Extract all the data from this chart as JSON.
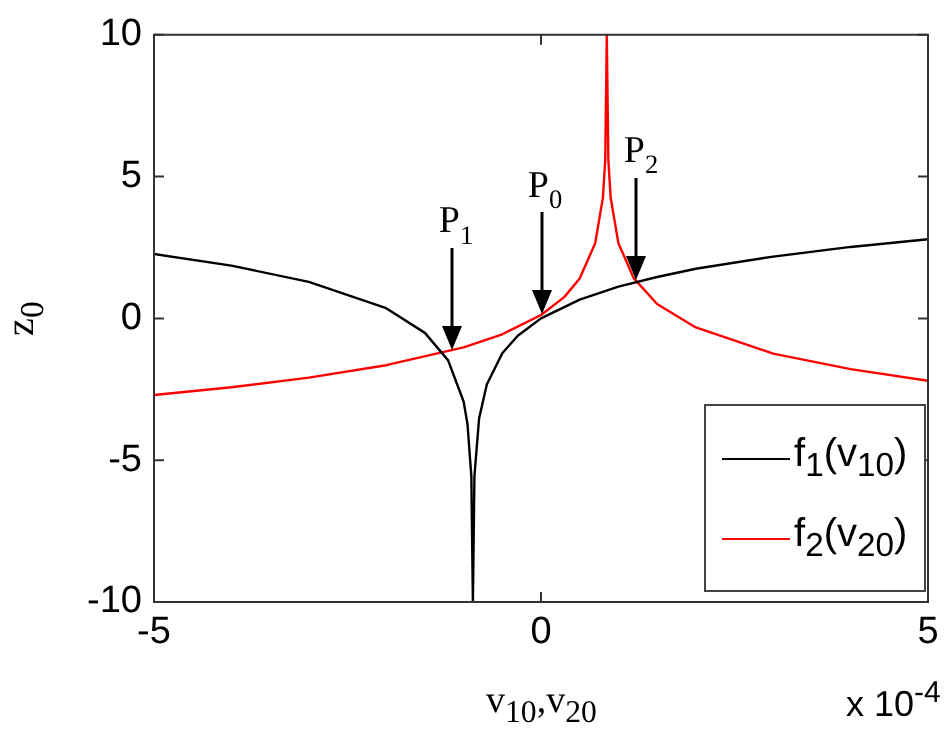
{
  "chart_data": {
    "type": "line",
    "xlabel": "v$_{10}$,v$_{20}$",
    "ylabel": "z$_{0}$",
    "xlim": [
      -5,
      5
    ],
    "xticks": [
      -5,
      0,
      5
    ],
    "ylim": [
      -10,
      10
    ],
    "yticks": [
      -10,
      -5,
      0,
      5,
      10
    ],
    "legend": "bottom right",
    "series": [
      {
        "name": "f$_{1}$(v$_{10}$)",
        "color": "#000000",
        "x": [
          -5,
          -4,
          -3,
          -2,
          -1.5,
          -1.2,
          -1,
          -0.95,
          -0.9,
          -0.88,
          -0.86,
          -0.8,
          -0.7,
          -0.5,
          -0.3,
          0,
          0.5,
          1,
          1.5,
          2,
          3,
          4,
          5
        ],
        "values": [
          2.27,
          1.86,
          1.29,
          0.36,
          -0.51,
          -1.48,
          -2.93,
          -3.72,
          -5.56,
          -10,
          -5.56,
          -3.53,
          -2.33,
          -1.23,
          -0.61,
          0.0,
          0.66,
          1.12,
          1.46,
          1.75,
          2.18,
          2.52,
          2.79
        ]
      },
      {
        "name": "f$_{2}$(v$_{20}$)",
        "color": "#ff0000",
        "x": [
          -5,
          -4,
          -3,
          -2,
          -1,
          -0.5,
          0,
          0.3,
          0.5,
          0.7,
          0.8,
          0.83,
          0.85,
          0.87,
          0.9,
          1,
          1.2,
          1.5,
          2,
          3,
          4,
          5
        ],
        "values": [
          -2.7,
          -2.43,
          -2.09,
          -1.65,
          -1.02,
          -0.56,
          0.12,
          0.75,
          1.41,
          2.65,
          4.26,
          5.59,
          10,
          5.59,
          4.26,
          2.65,
          1.41,
          0.51,
          -0.32,
          -1.24,
          -1.79,
          -2.2
        ]
      }
    ],
    "annotations": [
      {
        "text": "P$_{1}$",
        "x": -1.15,
        "y": -1.2
      },
      {
        "text": "P$_{0}$",
        "x": 0,
        "y": 0.05
      },
      {
        "text": "P$_{2}$",
        "x": 1.24,
        "y": 1.3
      },
      "x 10$^{-4}$"
    ]
  }
}
